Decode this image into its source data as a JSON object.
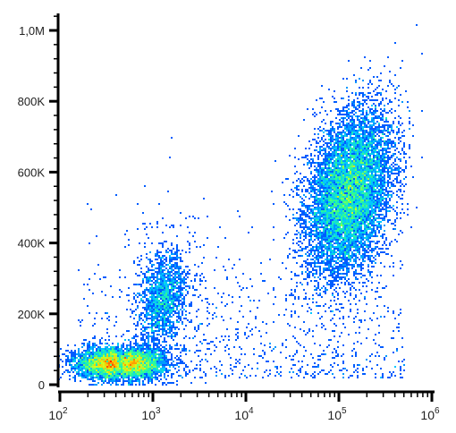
{
  "chart_data": {
    "type": "scatter",
    "style": "density dot plot (flow cytometry)",
    "x_scale": "log",
    "xlim": [
      60,
      1000000
    ],
    "ylim": [
      0,
      1050000
    ],
    "x_ticks": [
      {
        "value": 100,
        "base": "10",
        "exp": "2"
      },
      {
        "value": 1000,
        "base": "10",
        "exp": "3"
      },
      {
        "value": 10000,
        "base": "10",
        "exp": "4"
      },
      {
        "value": 100000,
        "base": "10",
        "exp": "5"
      },
      {
        "value": 1000000,
        "base": "10",
        "exp": "6"
      }
    ],
    "y_ticks": [
      {
        "value": 0,
        "label": "0"
      },
      {
        "value": 200000,
        "label": "200K"
      },
      {
        "value": 400000,
        "label": "400K"
      },
      {
        "value": 600000,
        "label": "600K"
      },
      {
        "value": 800000,
        "label": "800K"
      },
      {
        "value": 1000000,
        "label": "1,0M"
      }
    ],
    "populations": [
      {
        "center_x": 400,
        "center_y": 60000,
        "n_events": 5200,
        "peak_color": "red"
      },
      {
        "center_x": 1300,
        "center_y": 240000,
        "n_events": 1400,
        "peak_color": "cyan"
      },
      {
        "center_x": 130000,
        "center_y": 540000,
        "n_events": 9000,
        "peak_color": "yellow-green"
      }
    ],
    "grid": false,
    "colormap": [
      "#0000c8",
      "#0050ff",
      "#00c8ff",
      "#30ff90",
      "#d0ff20",
      "#ffc000",
      "#ff2000"
    ]
  }
}
